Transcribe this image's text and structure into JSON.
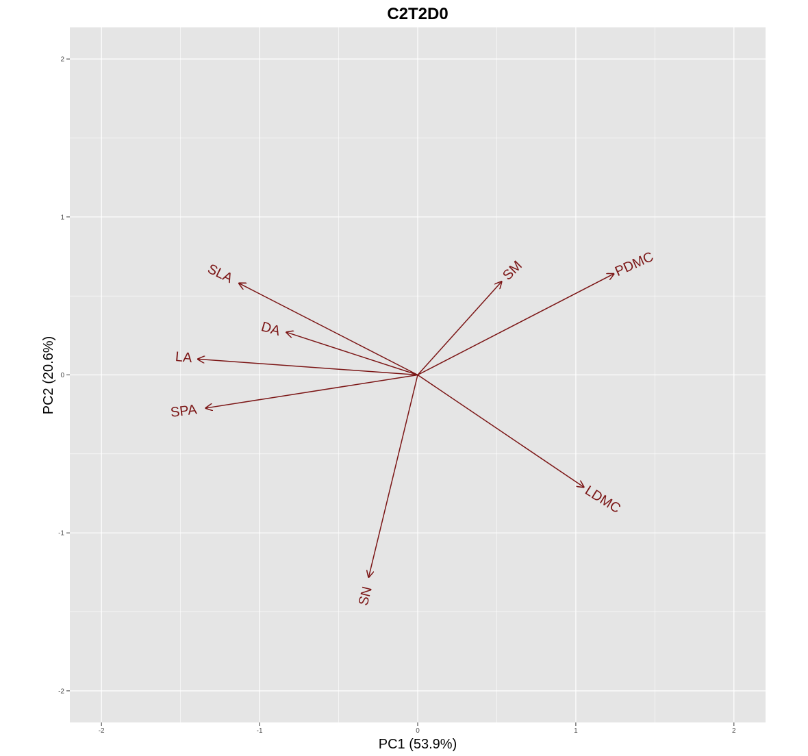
{
  "chart_data": {
    "type": "biplot",
    "title": "C2T2D0",
    "xlabel": "PC1 (53.9%)",
    "ylabel": "PC2 (20.6%)",
    "xlim": [
      -2.2,
      2.2
    ],
    "ylim": [
      -2.2,
      2.2
    ],
    "x_ticks": [
      -2,
      -1,
      0,
      1,
      2
    ],
    "y_ticks": [
      -2,
      -1,
      0,
      1,
      2
    ],
    "x_tick_labels": [
      "-2",
      "-1",
      "0",
      "1",
      "2"
    ],
    "y_tick_labels": [
      "-2",
      "-1",
      "0",
      "1",
      "2"
    ],
    "grid": true,
    "panel_color": "#e5e5e5",
    "grid_color": "#ffffff",
    "vector_color": "#7b1515",
    "vectors": [
      {
        "name": "SLA",
        "x": -1.13,
        "y": 0.58,
        "label_x": -1.25,
        "label_y": 0.64,
        "angle": 26
      },
      {
        "name": "DA",
        "x": -0.83,
        "y": 0.27,
        "label_x": -0.93,
        "label_y": 0.29,
        "angle": 16
      },
      {
        "name": "LA",
        "x": -1.39,
        "y": 0.1,
        "label_x": -1.48,
        "label_y": 0.11,
        "angle": 5
      },
      {
        "name": "SPA",
        "x": -1.34,
        "y": -0.21,
        "label_x": -1.48,
        "label_y": -0.23,
        "angle": -7
      },
      {
        "name": "SM",
        "x": 0.53,
        "y": 0.59,
        "label_x": 0.6,
        "label_y": 0.66,
        "angle": -45
      },
      {
        "name": "PDMC",
        "x": 1.24,
        "y": 0.64,
        "label_x": 1.37,
        "label_y": 0.7,
        "angle": -24
      },
      {
        "name": "LDMC",
        "x": 1.05,
        "y": -0.71,
        "label_x": 1.17,
        "label_y": -0.79,
        "angle": 32
      },
      {
        "name": "SN",
        "x": -0.31,
        "y": -1.28,
        "label_x": -0.33,
        "label_y": -1.4,
        "angle": -76
      }
    ]
  }
}
